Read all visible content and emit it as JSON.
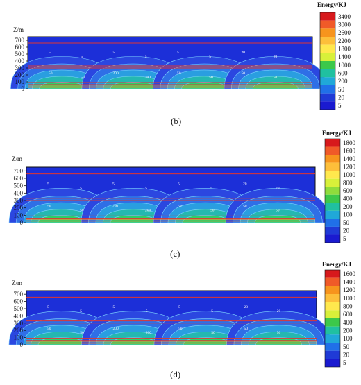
{
  "chart_data": [
    {
      "type": "heatmap",
      "panel_label": "(b)",
      "ylabel": "Z/m",
      "y_ticks": [
        "700",
        "600",
        "500",
        "400",
        "300",
        "200",
        "100",
        "0"
      ],
      "colorbar_title": "Energy/KJ",
      "colorbar_levels": [
        "3400",
        "3000",
        "2600",
        "2200",
        "1800",
        "1400",
        "1000",
        "600",
        "200",
        "50",
        "20",
        "5"
      ],
      "contour_labels": [
        "5",
        "5",
        "5",
        "5",
        "5",
        "5",
        "20",
        "20",
        "50",
        "50",
        "200",
        "200",
        "50",
        "50",
        "50",
        "50"
      ]
    },
    {
      "type": "heatmap",
      "panel_label": "(c)",
      "ylabel": "Z/m",
      "y_ticks": [
        "700",
        "600",
        "500",
        "400",
        "300",
        "200",
        "100",
        "0"
      ],
      "colorbar_title": "Energy/KJ",
      "colorbar_levels": [
        "1800",
        "1600",
        "1400",
        "1200",
        "1000",
        "800",
        "600",
        "400",
        "200",
        "100",
        "50",
        "20",
        "5"
      ],
      "contour_labels": [
        "5",
        "5",
        "5",
        "5",
        "5",
        "5",
        "20",
        "20",
        "50",
        "50",
        "200",
        "200",
        "50",
        "50",
        "50",
        "50"
      ]
    },
    {
      "type": "heatmap",
      "panel_label": "(d)",
      "ylabel": "Z/m",
      "y_ticks": [
        "700",
        "600",
        "500",
        "400",
        "300",
        "200",
        "100",
        "0"
      ],
      "colorbar_title": "Energy/KJ",
      "colorbar_levels": [
        "1600",
        "1400",
        "1200",
        "1000",
        "800",
        "600",
        "400",
        "200",
        "100",
        "50",
        "20",
        "5"
      ],
      "contour_labels": [
        "5",
        "5",
        "5",
        "5",
        "5",
        "5",
        "20",
        "20",
        "50",
        "50",
        "200",
        "200",
        "50",
        "50",
        "50",
        "50"
      ]
    }
  ]
}
